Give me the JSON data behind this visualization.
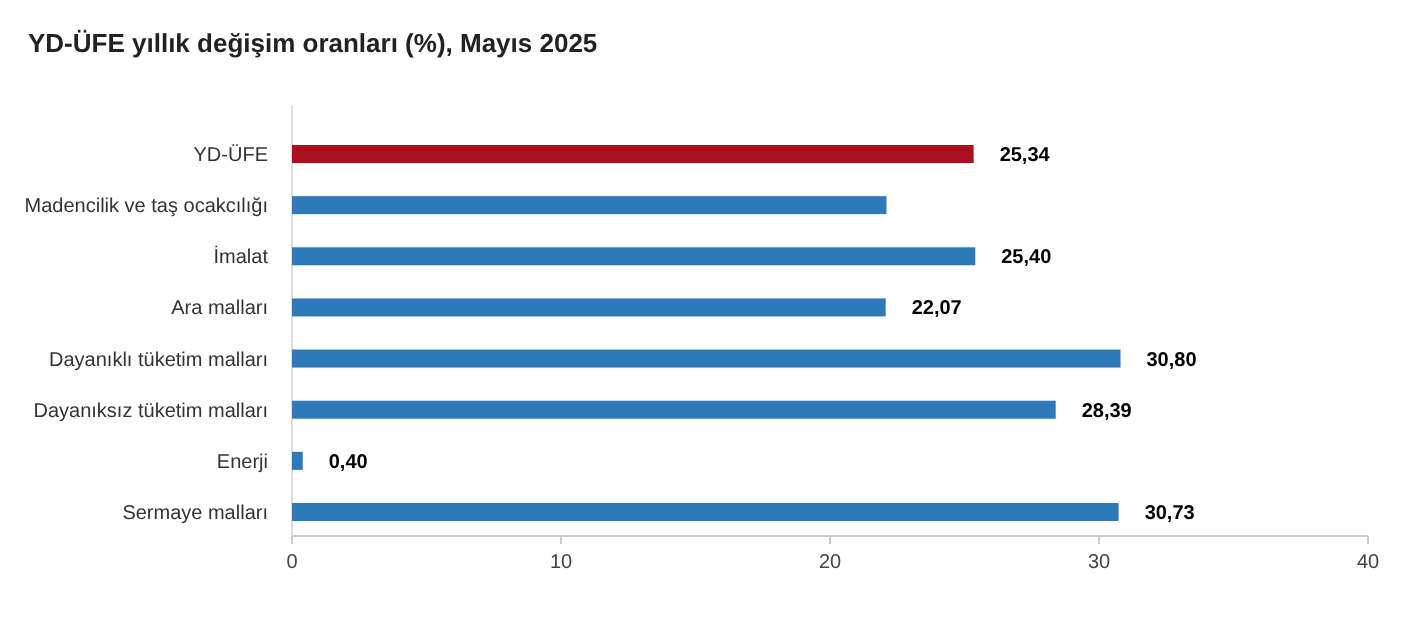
{
  "chart_data": {
    "type": "bar",
    "orientation": "horizontal",
    "title": "YD-ÜFE yıllık değişim oranları (%), Mayıs 2025",
    "categories": [
      "YD-ÜFE",
      "Madencilik ve taş ocakcılığı",
      "İmalat",
      "Ara malları",
      "Dayanıklı tüketim malları",
      "Dayanıksız tüketim malları",
      "Enerji",
      "Sermaye malları"
    ],
    "values": [
      25.34,
      22.1,
      25.4,
      22.07,
      30.8,
      28.39,
      0.4,
      30.73
    ],
    "colors": [
      "#a8121e",
      "#2e7ab8",
      "#2e7ab8",
      "#2e7ab8",
      "#2e7ab8",
      "#2e7ab8",
      "#2e7ab8",
      "#2e7ab8"
    ],
    "value_labels": [
      "25,34",
      null,
      "25,40",
      "22,07",
      "30,80",
      "28,39",
      "0,40",
      "30,73"
    ],
    "xlim": [
      0,
      40
    ],
    "xticks": [
      0,
      10,
      20,
      30,
      40
    ],
    "grid": false
  }
}
